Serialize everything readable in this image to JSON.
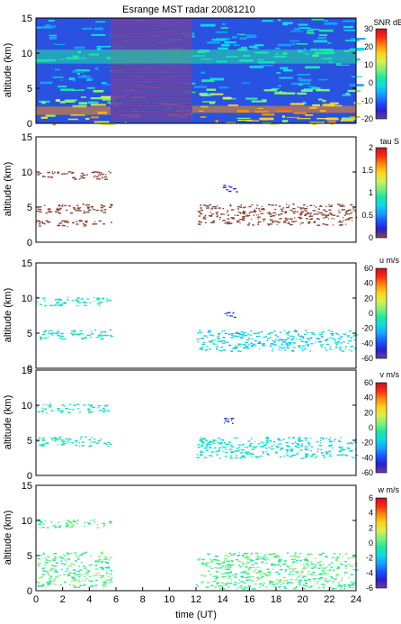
{
  "title": "Esrange MST radar 20081210",
  "colors": {
    "colormap": [
      "#6b3fa0",
      "#2a1fd0",
      "#1b55ff",
      "#14a0ff",
      "#10d8e8",
      "#1ee6a0",
      "#7ff07a",
      "#d6f050",
      "#ffd21e",
      "#ff8a0a",
      "#ff2a10",
      "#c8102a"
    ],
    "echo_brown": "#8a4a3a",
    "frame": "#000000"
  },
  "chart_data": [
    {
      "type": "heatmap",
      "title": "Esrange MST radar 20081210",
      "ylabel": "altitude (km)",
      "xlim": [
        0,
        24
      ],
      "ylim": [
        0,
        15
      ],
      "yticks": [
        "0",
        "5",
        "10",
        "15"
      ],
      "colorbar": {
        "label": "SNR dB",
        "ticks": [
          "30",
          "20",
          "10",
          "0",
          "-10",
          "-20"
        ],
        "range": [
          -20,
          30
        ]
      },
      "layers": [
        {
          "x": [
            0,
            5.6
          ],
          "y": [
            1.2,
            2.4
          ],
          "value": 20
        },
        {
          "x": [
            5.6,
            11.7
          ],
          "y": [
            0.3,
            15
          ],
          "value": -17
        },
        {
          "x": [
            11.7,
            24
          ],
          "y": [
            1.5,
            2.5
          ],
          "value": 18
        },
        {
          "x": [
            0,
            24
          ],
          "y": [
            8.5,
            10.5
          ],
          "value": 2
        }
      ]
    },
    {
      "type": "heatmap",
      "ylabel": "altitude (km)",
      "xlim": [
        0,
        24
      ],
      "ylim": [
        0,
        15
      ],
      "yticks": [
        "0",
        "5",
        "10",
        "15"
      ],
      "colorbar": {
        "label": "tau S",
        "ticks": [
          "2",
          "1.5",
          "1",
          "0.5",
          "0"
        ],
        "range": [
          0,
          2
        ]
      },
      "layers": [
        {
          "x": [
            0,
            5.6
          ],
          "y": [
            9,
            10.2
          ],
          "value": 2
        },
        {
          "x": [
            0,
            5.6
          ],
          "y": [
            4.2,
            5.6
          ],
          "value": 2
        },
        {
          "x": [
            0,
            5.6
          ],
          "y": [
            2.3,
            3.2
          ],
          "value": 2
        },
        {
          "x": [
            12,
            24
          ],
          "y": [
            2.5,
            5.5
          ],
          "value": 2
        },
        {
          "x": [
            14,
            15
          ],
          "y": [
            7.2,
            8.2
          ],
          "value": 0.3
        }
      ]
    },
    {
      "type": "heatmap",
      "ylabel": "altitude (km)",
      "xlim": [
        0,
        24
      ],
      "ylim": [
        0,
        15
      ],
      "yticks": [
        "0",
        "5",
        "10",
        "15"
      ],
      "colorbar": {
        "label": "u m/s",
        "ticks": [
          "60",
          "40",
          "20",
          "0",
          "-20",
          "-40",
          "-60"
        ],
        "range": [
          -60,
          60
        ]
      },
      "layers": [
        {
          "x": [
            0,
            5.6
          ],
          "y": [
            9,
            10.2
          ],
          "value": -12
        },
        {
          "x": [
            0,
            5.6
          ],
          "y": [
            4.2,
            5.6
          ],
          "value": -10
        },
        {
          "x": [
            12,
            24
          ],
          "y": [
            2.5,
            5.5
          ],
          "value": -15
        },
        {
          "x": [
            14,
            15
          ],
          "y": [
            7.2,
            8.2
          ],
          "value": -40
        }
      ]
    },
    {
      "type": "heatmap",
      "ylabel": "altitude (km)",
      "xlim": [
        0,
        24
      ],
      "ylim": [
        0,
        15
      ],
      "yticks": [
        "0",
        "5",
        "10",
        "15"
      ],
      "colorbar": {
        "label": "v m/s",
        "ticks": [
          "60",
          "40",
          "20",
          "0",
          "-20",
          "-40",
          "-60"
        ],
        "range": [
          -60,
          60
        ]
      },
      "layers": [
        {
          "x": [
            0,
            5.6
          ],
          "y": [
            9,
            10.2
          ],
          "value": -10
        },
        {
          "x": [
            0,
            5.6
          ],
          "y": [
            4.2,
            5.6
          ],
          "value": -8
        },
        {
          "x": [
            12,
            24
          ],
          "y": [
            2.5,
            5.5
          ],
          "value": -12
        },
        {
          "x": [
            14,
            15
          ],
          "y": [
            7.2,
            8.2
          ],
          "value": -45
        }
      ]
    },
    {
      "type": "heatmap",
      "ylabel": "altitude (km)",
      "xlabel": "time (UT)",
      "xlim": [
        0,
        24
      ],
      "ylim": [
        0,
        15
      ],
      "xticks": [
        "0",
        "2",
        "4",
        "6",
        "8",
        "10",
        "12",
        "14",
        "16",
        "18",
        "20",
        "22",
        "24"
      ],
      "yticks": [
        "0",
        "5",
        "10",
        "15"
      ],
      "colorbar": {
        "label": "w m/s",
        "ticks": [
          "6",
          "4",
          "2",
          "0",
          "-2",
          "-4",
          "-6"
        ],
        "range": [
          -6,
          6
        ]
      },
      "layers": [
        {
          "x": [
            0,
            5.6
          ],
          "y": [
            0.5,
            5.6
          ],
          "value": 0
        },
        {
          "x": [
            0,
            5.6
          ],
          "y": [
            9,
            10.2
          ],
          "value": 0
        },
        {
          "x": [
            12,
            24
          ],
          "y": [
            0.3,
            5.5
          ],
          "value": 0
        }
      ]
    }
  ]
}
